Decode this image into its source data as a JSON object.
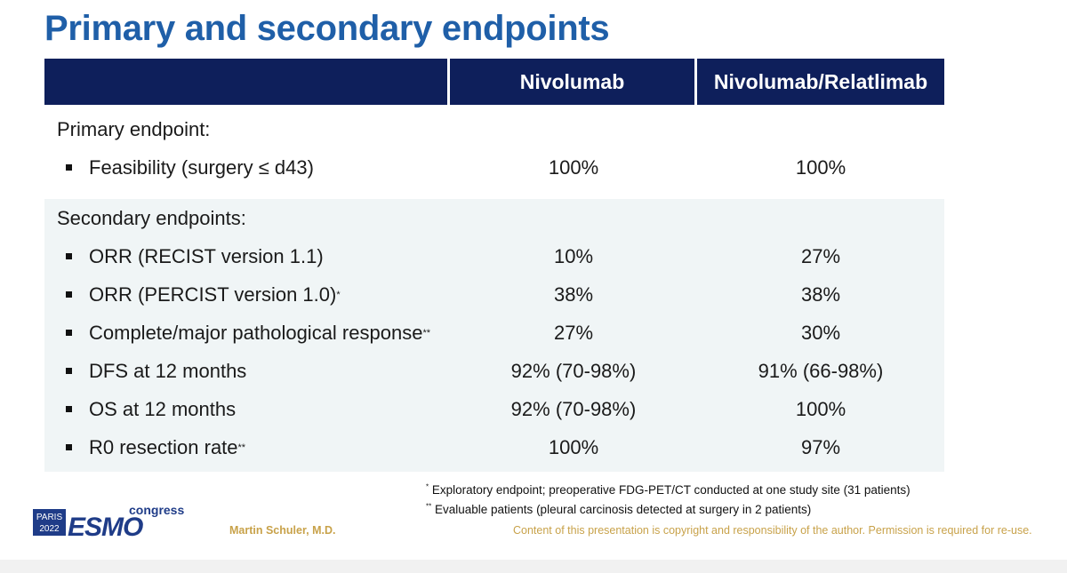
{
  "title": "Primary and secondary endpoints",
  "table": {
    "columns": [
      "",
      "Nivolumab",
      "Nivolumab/Relatlimab"
    ],
    "primary": {
      "label": "Primary endpoint:",
      "rows": [
        {
          "name": "Feasibility (surgery ≤ d43)",
          "sup": "",
          "nivolumab": "100%",
          "combo": "100%"
        }
      ]
    },
    "secondary": {
      "label": "Secondary endpoints:",
      "rows": [
        {
          "name": "ORR (RECIST version 1.1)",
          "sup": "",
          "nivolumab": "10%",
          "combo": "27%"
        },
        {
          "name": "ORR (PERCIST version 1.0)",
          "sup": "*",
          "nivolumab": "38%",
          "combo": "38%"
        },
        {
          "name": "Complete/major pathological response",
          "sup": "**",
          "nivolumab": "27%",
          "combo": "30%"
        },
        {
          "name": "DFS at 12 months",
          "sup": "",
          "nivolumab": "92% (70-98%)",
          "combo": "91% (66-98%)"
        },
        {
          "name": "OS at 12 months",
          "sup": "",
          "nivolumab": "92% (70-98%)",
          "combo": "100%"
        },
        {
          "name": "R0 resection rate",
          "sup": "**",
          "nivolumab": "100%",
          "combo": "97%"
        }
      ]
    }
  },
  "footnotes": [
    {
      "mark": "*",
      "text": " Exploratory endpoint; preoperative FDG-PET/CT conducted at one study site (31 patients)"
    },
    {
      "mark": "**",
      "text": " Evaluable patients (pleural carcinosis detected at surgery in 2 patients)"
    }
  ],
  "logo": {
    "city": "PARIS",
    "year": "2022",
    "brand": "ESMO",
    "word": "congress"
  },
  "presenter": "Martin Schuler, M.D.",
  "copyright": "Content of this presentation is copyright and responsibility of the author. Permission is required for re-use.",
  "colors": {
    "title": "#1f5fa8",
    "header_bg": "#0e1f5b",
    "secondary_bg": "#f0f5f6",
    "footer_text": "#c8a24a",
    "logo_blue": "#1f3c88"
  }
}
